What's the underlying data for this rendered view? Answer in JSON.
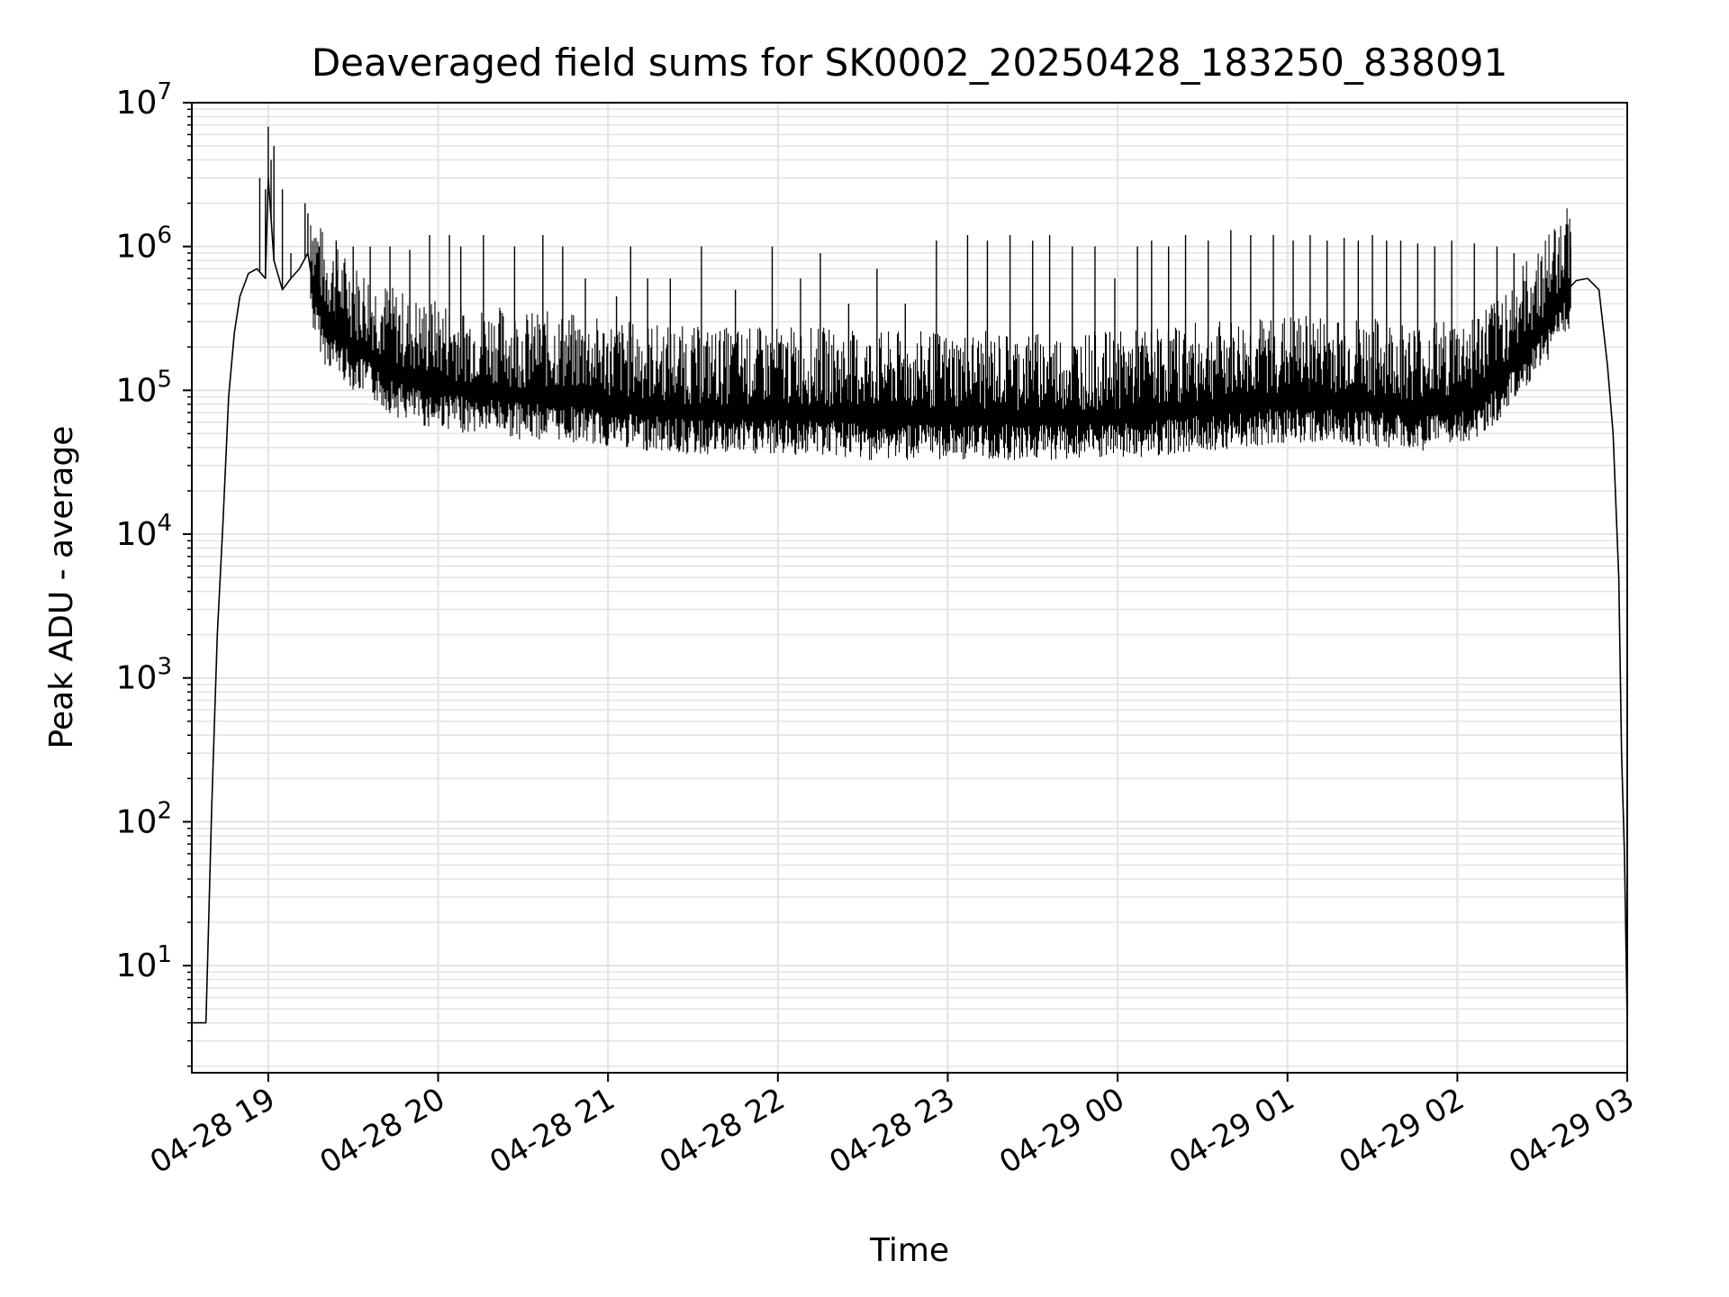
{
  "chart_data": {
    "type": "line",
    "title": "Deaveraged field sums for SK0002_20250428_183250_838091",
    "xlabel": "Time",
    "ylabel": "Peak ADU - average",
    "yscale": "log",
    "ylim": [
      1.8,
      10000000
    ],
    "xlim": [
      "2025-04-28 18:33",
      "2025-04-29 03:00"
    ],
    "x_ticks": [
      {
        "value": "2025-04-28 19:00",
        "label": "04-28 19"
      },
      {
        "value": "2025-04-28 20:00",
        "label": "04-28 20"
      },
      {
        "value": "2025-04-28 21:00",
        "label": "04-28 21"
      },
      {
        "value": "2025-04-28 22:00",
        "label": "04-28 22"
      },
      {
        "value": "2025-04-28 23:00",
        "label": "04-28 23"
      },
      {
        "value": "2025-04-29 00:00",
        "label": "04-29 00"
      },
      {
        "value": "2025-04-29 01:00",
        "label": "04-29 01"
      },
      {
        "value": "2025-04-29 02:00",
        "label": "04-29 02"
      },
      {
        "value": "2025-04-29 03:00",
        "label": "04-29 03"
      }
    ],
    "y_ticks": [
      {
        "value": 10,
        "base": "10",
        "exp": "1"
      },
      {
        "value": 100,
        "base": "10",
        "exp": "2"
      },
      {
        "value": 1000,
        "base": "10",
        "exp": "3"
      },
      {
        "value": 10000,
        "base": "10",
        "exp": "4"
      },
      {
        "value": 100000,
        "base": "10",
        "exp": "5"
      },
      {
        "value": 1000000,
        "base": "10",
        "exp": "6"
      },
      {
        "value": 10000000,
        "base": "10",
        "exp": "7"
      }
    ],
    "grid": true,
    "line_color": "#000000",
    "grid_color": "#e3e3e3",
    "series": [
      {
        "color": "#000000",
        "x": [
          "2025-04-28 18:33",
          "2025-04-28 18:35",
          "2025-04-28 18:36",
          "2025-04-28 18:38",
          "2025-04-28 18:40",
          "2025-04-28 18:42",
          "2025-04-28 18:44",
          "2025-04-28 18:46",
          "2025-04-28 18:48",
          "2025-04-28 18:50",
          "2025-04-28 18:53",
          "2025-04-28 18:56",
          "2025-04-28 18:59",
          "2025-04-28 19:00",
          "2025-04-28 19:02",
          "2025-04-28 19:05",
          "2025-04-28 19:08",
          "2025-04-28 19:11",
          "2025-04-28 19:14",
          "2025-04-28 19:16",
          "2025-04-28 19:20",
          "2025-04-28 19:25",
          "2025-04-28 19:30",
          "2025-04-28 19:35",
          "2025-04-28 19:40",
          "2025-04-28 19:45",
          "2025-04-28 19:50",
          "2025-04-28 19:55",
          "2025-04-28 20:00",
          "2025-04-28 20:10",
          "2025-04-28 20:20",
          "2025-04-28 20:30",
          "2025-04-28 20:40",
          "2025-04-28 20:50",
          "2025-04-28 21:00",
          "2025-04-28 21:15",
          "2025-04-28 21:30",
          "2025-04-28 21:45",
          "2025-04-28 22:00",
          "2025-04-28 22:15",
          "2025-04-28 22:30",
          "2025-04-28 22:45",
          "2025-04-28 23:00",
          "2025-04-28 23:15",
          "2025-04-28 23:30",
          "2025-04-28 23:45",
          "2025-04-29 00:00",
          "2025-04-29 00:15",
          "2025-04-29 00:30",
          "2025-04-29 00:45",
          "2025-04-29 01:00",
          "2025-04-29 01:15",
          "2025-04-29 01:30",
          "2025-04-29 01:45",
          "2025-04-29 02:00",
          "2025-04-29 02:10",
          "2025-04-29 02:20",
          "2025-04-29 02:30",
          "2025-04-29 02:38",
          "2025-04-29 02:42",
          "2025-04-29 02:46",
          "2025-04-29 02:50",
          "2025-04-29 02:53",
          "2025-04-29 02:55",
          "2025-04-29 02:57",
          "2025-04-29 02:58",
          "2025-04-29 02:59",
          "2025-04-29 03:00"
        ],
        "y": [
          4,
          4,
          4,
          4,
          120,
          2000,
          12000,
          90000,
          250000,
          450000,
          650000,
          700000,
          600000,
          3000000,
          800000,
          500000,
          600000,
          700000,
          900000,
          500000,
          300000,
          250000,
          200000,
          180000,
          150000,
          130000,
          120000,
          110000,
          110000,
          100000,
          100000,
          90000,
          90000,
          85000,
          80000,
          75000,
          70000,
          70000,
          70000,
          70000,
          65000,
          65000,
          65000,
          65000,
          65000,
          65000,
          65000,
          70000,
          75000,
          80000,
          85000,
          85000,
          80000,
          75000,
          80000,
          100000,
          160000,
          280000,
          480000,
          580000,
          600000,
          500000,
          150000,
          50000,
          5000,
          300,
          60,
          4
        ],
        "spikes": [
          {
            "x": "2025-04-28 18:57",
            "y": 3000000
          },
          {
            "x": "2025-04-28 18:59",
            "y": 2500000
          },
          {
            "x": "2025-04-28 19:00",
            "y": 6800000
          },
          {
            "x": "2025-04-28 19:01",
            "y": 4000000
          },
          {
            "x": "2025-04-28 19:02",
            "y": 5000000
          },
          {
            "x": "2025-04-28 19:05",
            "y": 2500000
          },
          {
            "x": "2025-04-28 19:08",
            "y": 900000
          },
          {
            "x": "2025-04-28 19:13",
            "y": 2000000
          },
          {
            "x": "2025-04-28 19:14",
            "y": 1700000
          },
          {
            "x": "2025-04-28 19:18",
            "y": 1000000
          },
          {
            "x": "2025-04-28 19:24",
            "y": 1100000
          },
          {
            "x": "2025-04-28 19:30",
            "y": 1000000
          },
          {
            "x": "2025-04-28 19:36",
            "y": 1000000
          },
          {
            "x": "2025-04-28 19:43",
            "y": 1000000
          },
          {
            "x": "2025-04-28 19:50",
            "y": 950000
          },
          {
            "x": "2025-04-28 19:57",
            "y": 1200000
          },
          {
            "x": "2025-04-28 20:04",
            "y": 1200000
          },
          {
            "x": "2025-04-28 20:08",
            "y": 1000000
          },
          {
            "x": "2025-04-28 20:16",
            "y": 1200000
          },
          {
            "x": "2025-04-28 20:27",
            "y": 1000000
          },
          {
            "x": "2025-04-28 20:37",
            "y": 1200000
          },
          {
            "x": "2025-04-28 20:44",
            "y": 1000000
          },
          {
            "x": "2025-04-28 20:52",
            "y": 600000
          },
          {
            "x": "2025-04-28 21:03",
            "y": 450000
          },
          {
            "x": "2025-04-28 21:08",
            "y": 1000000
          },
          {
            "x": "2025-04-28 21:14",
            "y": 600000
          },
          {
            "x": "2025-04-28 21:22",
            "y": 600000
          },
          {
            "x": "2025-04-28 21:33",
            "y": 1000000
          },
          {
            "x": "2025-04-28 21:45",
            "y": 500000
          },
          {
            "x": "2025-04-28 21:58",
            "y": 1000000
          },
          {
            "x": "2025-04-28 22:08",
            "y": 600000
          },
          {
            "x": "2025-04-28 22:15",
            "y": 900000
          },
          {
            "x": "2025-04-28 22:25",
            "y": 400000
          },
          {
            "x": "2025-04-28 22:35",
            "y": 700000
          },
          {
            "x": "2025-04-28 22:45",
            "y": 400000
          },
          {
            "x": "2025-04-28 22:56",
            "y": 1100000
          },
          {
            "x": "2025-04-28 23:07",
            "y": 1200000
          },
          {
            "x": "2025-04-28 23:14",
            "y": 1100000
          },
          {
            "x": "2025-04-28 23:22",
            "y": 1200000
          },
          {
            "x": "2025-04-28 23:30",
            "y": 1100000
          },
          {
            "x": "2025-04-28 23:36",
            "y": 1200000
          },
          {
            "x": "2025-04-28 23:44",
            "y": 1000000
          },
          {
            "x": "2025-04-28 23:52",
            "y": 1000000
          },
          {
            "x": "2025-04-28 23:59",
            "y": 600000
          },
          {
            "x": "2025-04-29 00:07",
            "y": 1000000
          },
          {
            "x": "2025-04-29 00:12",
            "y": 1100000
          },
          {
            "x": "2025-04-29 00:18",
            "y": 1000000
          },
          {
            "x": "2025-04-29 00:24",
            "y": 1200000
          },
          {
            "x": "2025-04-29 00:32",
            "y": 1100000
          },
          {
            "x": "2025-04-29 00:40",
            "y": 1300000
          },
          {
            "x": "2025-04-29 00:47",
            "y": 1200000
          },
          {
            "x": "2025-04-29 00:55",
            "y": 1200000
          },
          {
            "x": "2025-04-29 01:02",
            "y": 1100000
          },
          {
            "x": "2025-04-29 01:08",
            "y": 1200000
          },
          {
            "x": "2025-04-29 01:14",
            "y": 1100000
          },
          {
            "x": "2025-04-29 01:20",
            "y": 1150000
          },
          {
            "x": "2025-04-29 01:25",
            "y": 1100000
          },
          {
            "x": "2025-04-29 01:30",
            "y": 1200000
          },
          {
            "x": "2025-04-29 01:35",
            "y": 1100000
          },
          {
            "x": "2025-04-29 01:40",
            "y": 1100000
          },
          {
            "x": "2025-04-29 01:46",
            "y": 1050000
          },
          {
            "x": "2025-04-29 01:52",
            "y": 1000000
          },
          {
            "x": "2025-04-29 01:58",
            "y": 1100000
          },
          {
            "x": "2025-04-29 02:06",
            "y": 1050000
          },
          {
            "x": "2025-04-29 02:14",
            "y": 1000000
          },
          {
            "x": "2025-04-29 02:20",
            "y": 900000
          },
          {
            "x": "2025-04-29 02:38",
            "y": 1200000
          },
          {
            "x": "2025-04-29 02:40",
            "y": 1000000
          }
        ]
      }
    ]
  }
}
